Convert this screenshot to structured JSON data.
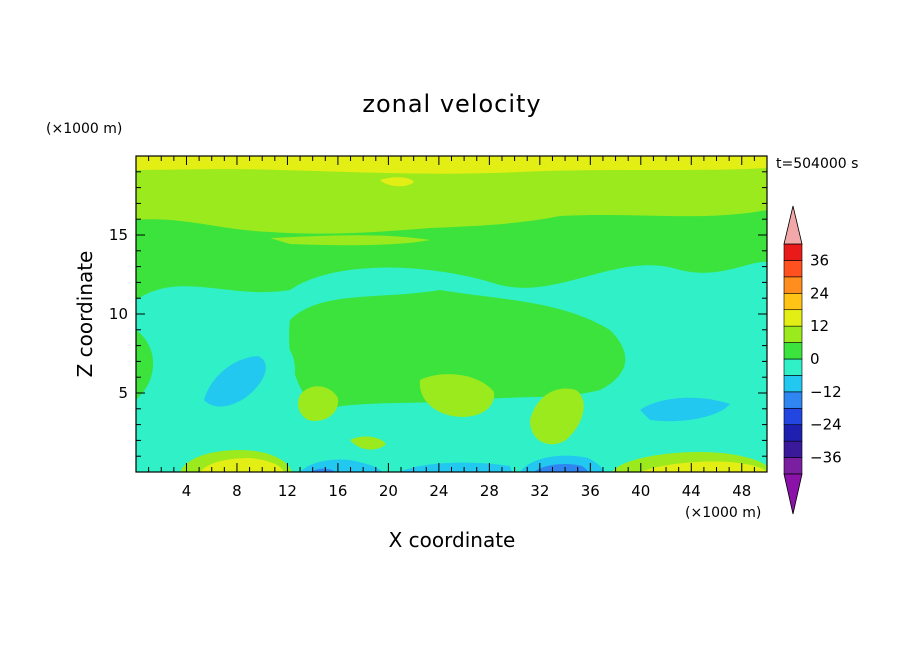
{
  "chart_data": {
    "type": "heatmap",
    "title": "zonal velocity",
    "xlabel": "X coordinate",
    "ylabel": "Z coordinate",
    "x_unit_label": "(×1000 m)",
    "y_unit_label": "(×1000 m)",
    "time_label": "t=504000 s",
    "xlim": [
      0,
      50
    ],
    "ylim": [
      0,
      20
    ],
    "x_ticks": [
      4,
      8,
      12,
      16,
      20,
      24,
      28,
      32,
      36,
      40,
      44,
      48
    ],
    "x_tick_labels": [
      "4",
      "8",
      "12",
      "16",
      "20",
      "24",
      "28",
      "32",
      "36",
      "40",
      "44",
      "48"
    ],
    "y_ticks": [
      5,
      10,
      15
    ],
    "y_tick_labels": [
      "5",
      "10",
      "15"
    ],
    "colorbar": {
      "levels": [
        -42,
        -36,
        -30,
        -24,
        -18,
        -12,
        -6,
        0,
        6,
        12,
        18,
        24,
        30,
        36,
        42
      ],
      "tick_values": [
        36,
        24,
        12,
        0,
        -12,
        -24,
        -36
      ],
      "tick_labels": [
        "36",
        "24",
        "12",
        "0",
        "−12",
        "−24",
        "−36"
      ],
      "colors": [
        "#7a1fa0",
        "#3a1a9a",
        "#1f1fb0",
        "#2346e0",
        "#2f86f0",
        "#22c8f0",
        "#30f0c8",
        "#3ce33c",
        "#9bea1e",
        "#e2ee14",
        "#ffc414",
        "#ff8e1e",
        "#ff5020",
        "#e81a1a"
      ],
      "extend_low_color": "#8a12a8",
      "extend_high_color": "#f2a8a8"
    },
    "field_description_points": [
      {
        "x": 9,
        "z": 0.5,
        "value": 10
      },
      {
        "x": 44,
        "z": 0.6,
        "value": 8
      },
      {
        "x": 15,
        "z": 0.2,
        "value": -14
      },
      {
        "x": 33,
        "z": 0.4,
        "value": -20
      },
      {
        "x": 8,
        "z": 6,
        "value": -10
      },
      {
        "x": 44,
        "z": 4,
        "value": -8
      },
      {
        "x": 25,
        "z": 4.5,
        "value": 3
      },
      {
        "x": 18,
        "z": 18.5,
        "value": 8
      },
      {
        "x": 25,
        "z": 12,
        "value": -1
      }
    ]
  }
}
